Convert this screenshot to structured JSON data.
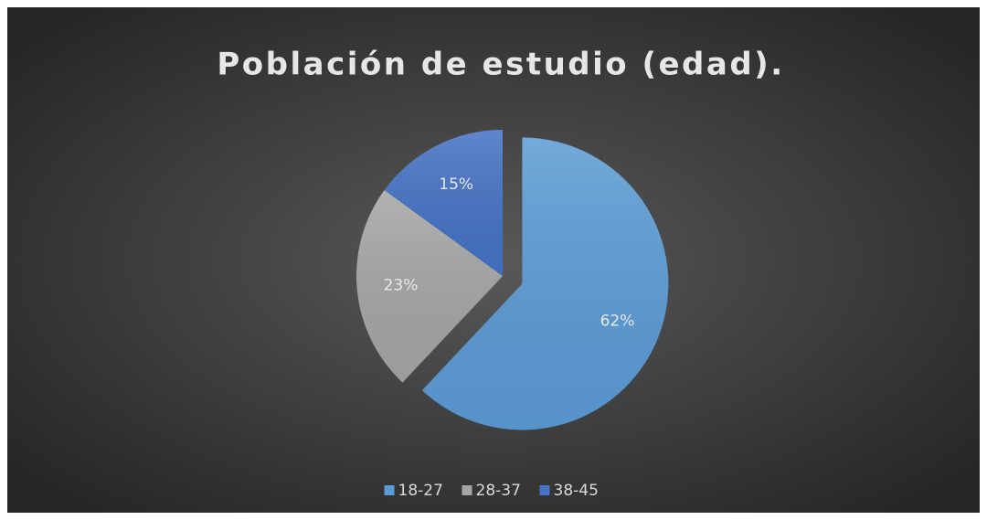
{
  "chart_data": {
    "type": "pie",
    "title": "Población de estudio (edad).",
    "categories": [
      "18-27",
      "28-37",
      "38-45"
    ],
    "values": [
      62,
      23,
      15
    ],
    "value_labels": [
      "62%",
      "23%",
      "15%"
    ],
    "colors": [
      "#5b9bd5",
      "#a5a5a5",
      "#4472c4"
    ],
    "legend": "bottom"
  }
}
